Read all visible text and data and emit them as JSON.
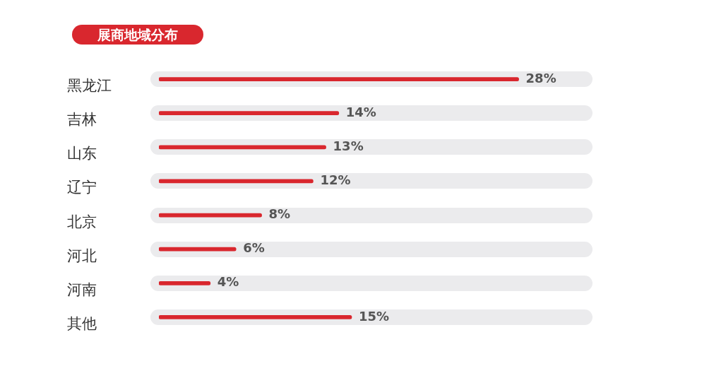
{
  "chart_data": {
    "type": "bar",
    "orientation": "horizontal",
    "title": "展商地域分布",
    "categories": [
      "黑龙江",
      "吉林",
      "山东",
      "辽宁",
      "北京",
      "河北",
      "河南",
      "其他"
    ],
    "values": [
      28,
      14,
      13,
      12,
      8,
      6,
      4,
      15
    ],
    "value_labels": [
      "28%",
      "14%",
      "13%",
      "12%",
      "8%",
      "6%",
      "4%",
      "15%"
    ],
    "color": "#d9272e",
    "grid": false,
    "legend": false,
    "tick_labels": "y"
  }
}
